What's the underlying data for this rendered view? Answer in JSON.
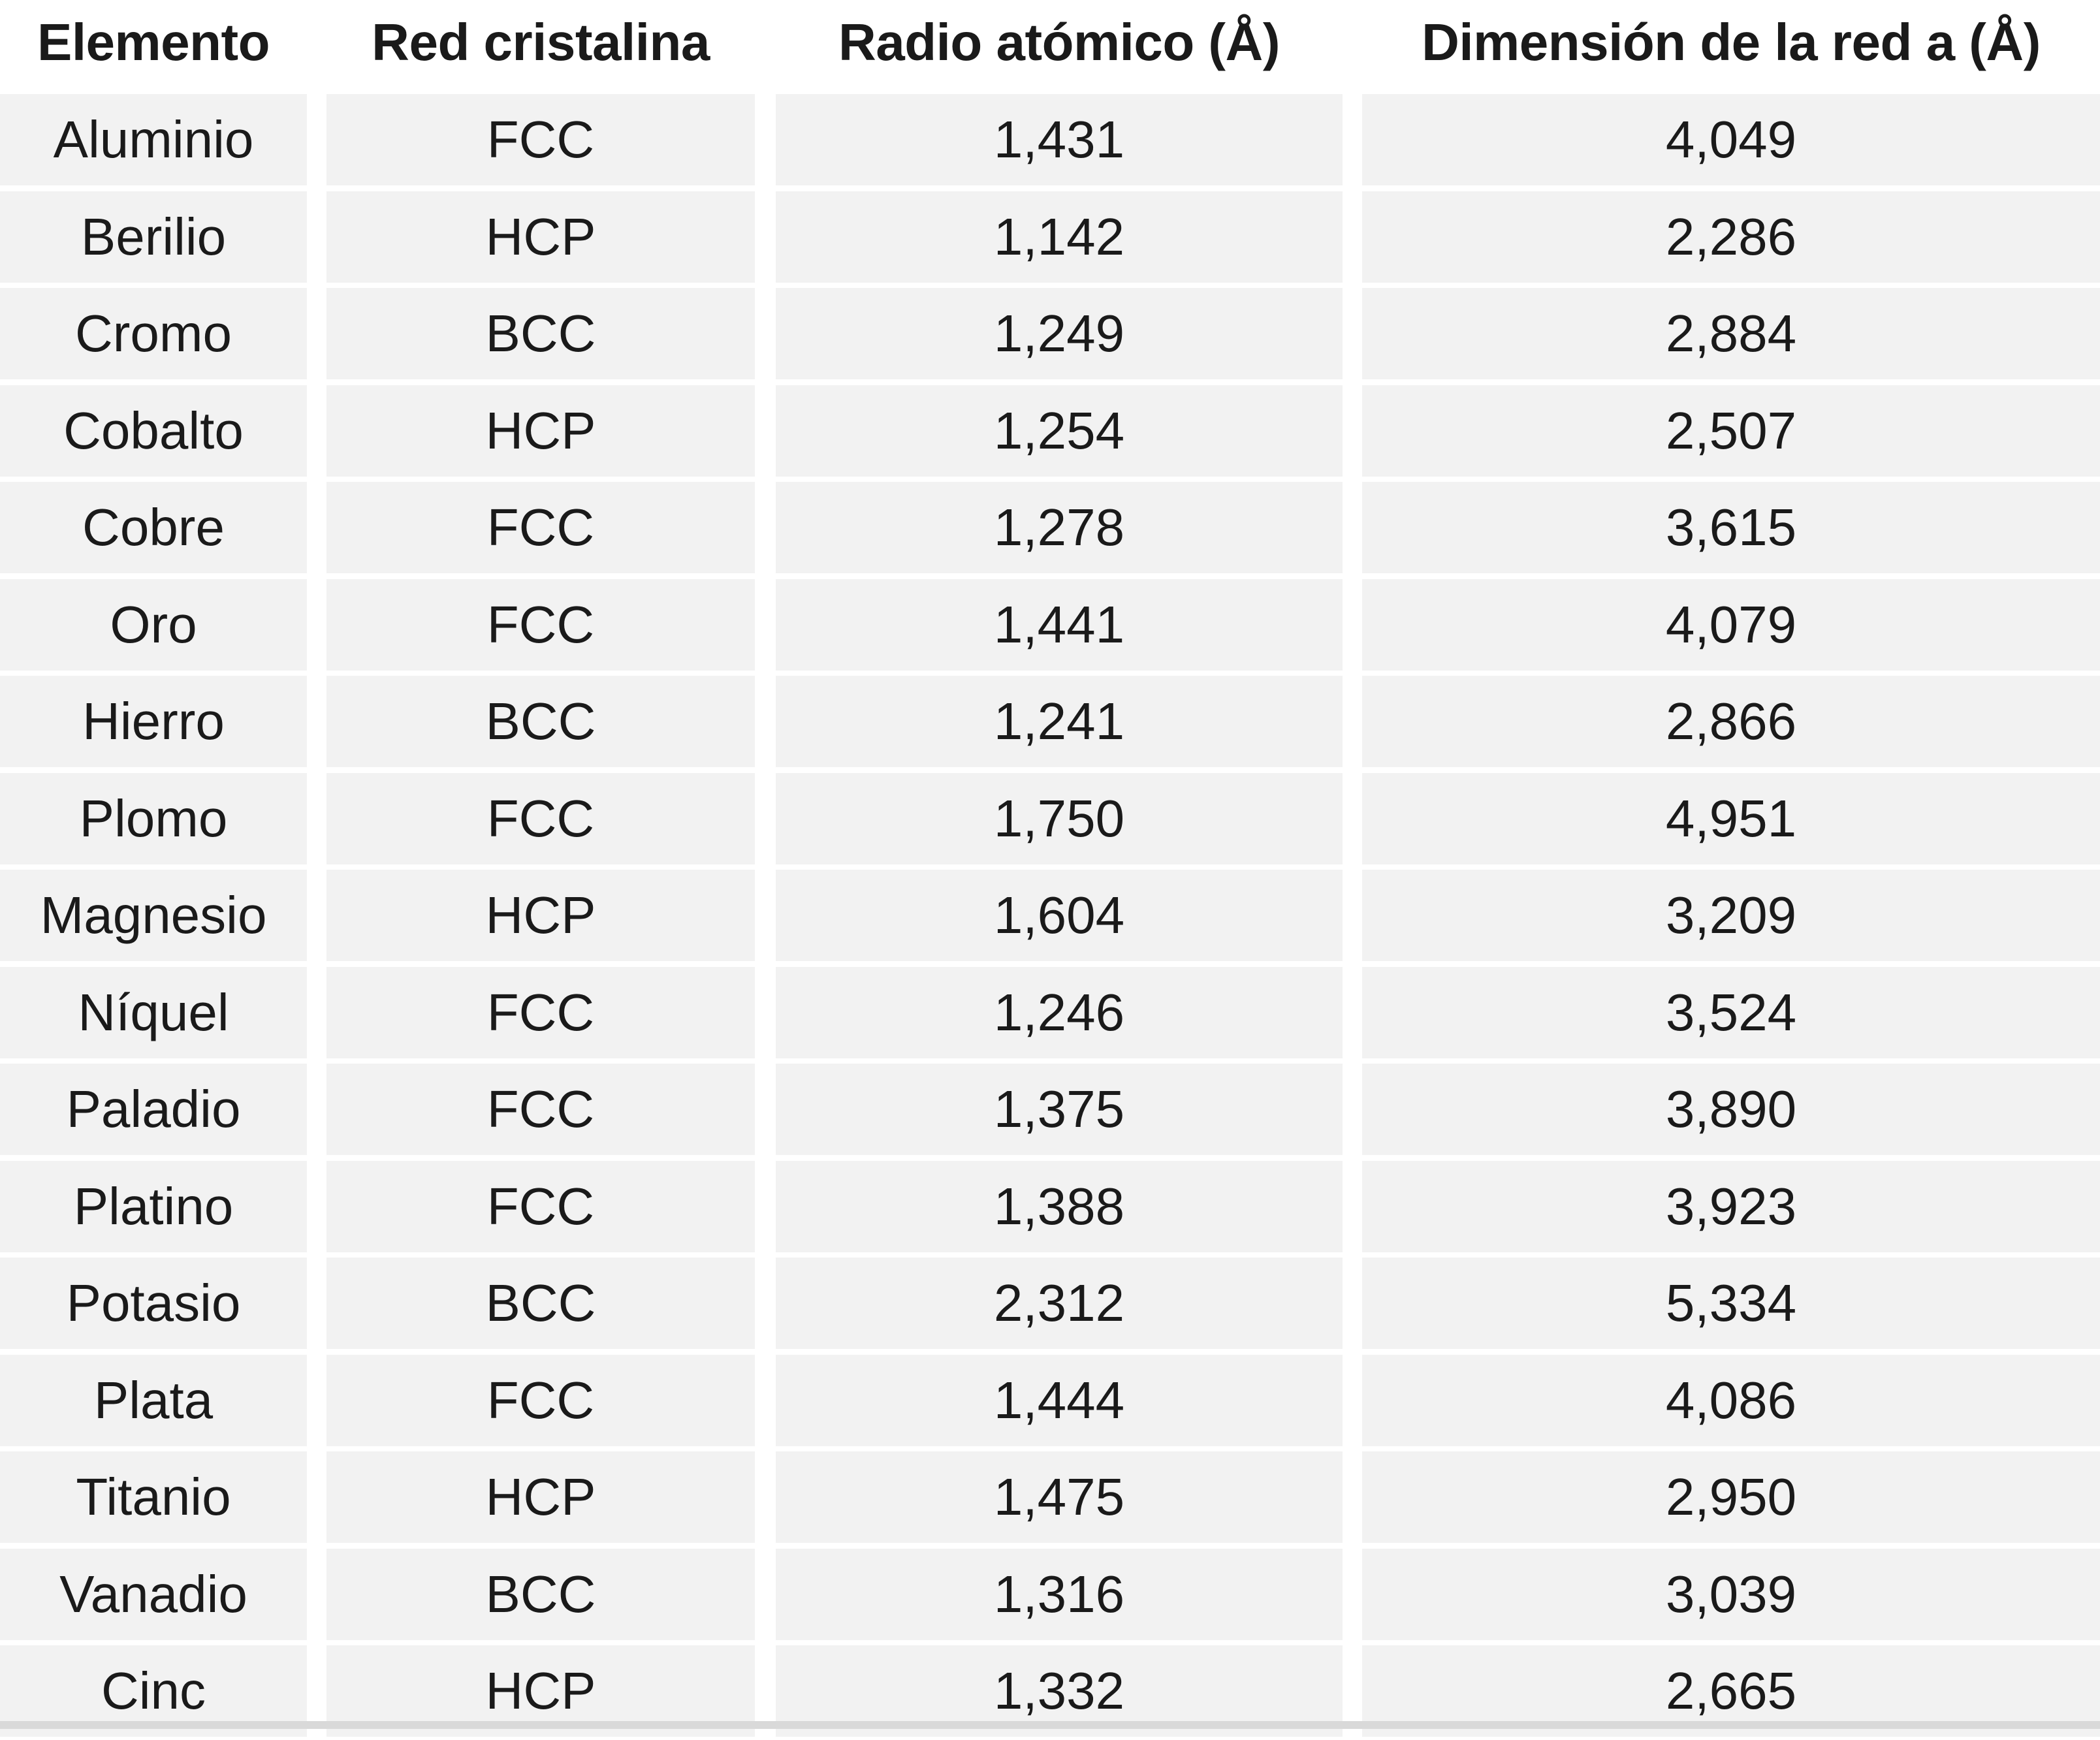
{
  "table": {
    "headers": [
      "Elemento",
      "Red cristalina",
      "Radio atómico (Å)",
      "Dimensión de la red a (Å)"
    ],
    "rows": [
      [
        "Aluminio",
        "FCC",
        "1,431",
        "4,049"
      ],
      [
        "Berilio",
        "HCP",
        "1,142",
        "2,286"
      ],
      [
        "Cromo",
        "BCC",
        "1,249",
        "2,884"
      ],
      [
        "Cobalto",
        "HCP",
        "1,254",
        "2,507"
      ],
      [
        "Cobre",
        "FCC",
        "1,278",
        "3,615"
      ],
      [
        "Oro",
        "FCC",
        "1,441",
        "4,079"
      ],
      [
        "Hierro",
        "BCC",
        "1,241",
        "2,866"
      ],
      [
        "Plomo",
        "FCC",
        "1,750",
        "4,951"
      ],
      [
        "Magnesio",
        "HCP",
        "1,604",
        "3,209"
      ],
      [
        "Níquel",
        "FCC",
        "1,246",
        "3,524"
      ],
      [
        "Paladio",
        "FCC",
        "1,375",
        "3,890"
      ],
      [
        "Platino",
        "FCC",
        "1,388",
        "3,923"
      ],
      [
        "Potasio",
        "BCC",
        "2,312",
        "5,334"
      ],
      [
        "Plata",
        "FCC",
        "1,444",
        "4,086"
      ],
      [
        "Titanio",
        "HCP",
        "1,475",
        "2,950"
      ],
      [
        "Vanadio",
        "BCC",
        "1,316",
        "3,039"
      ],
      [
        "Cinc",
        "HCP",
        "1,332",
        "2,665"
      ]
    ]
  }
}
